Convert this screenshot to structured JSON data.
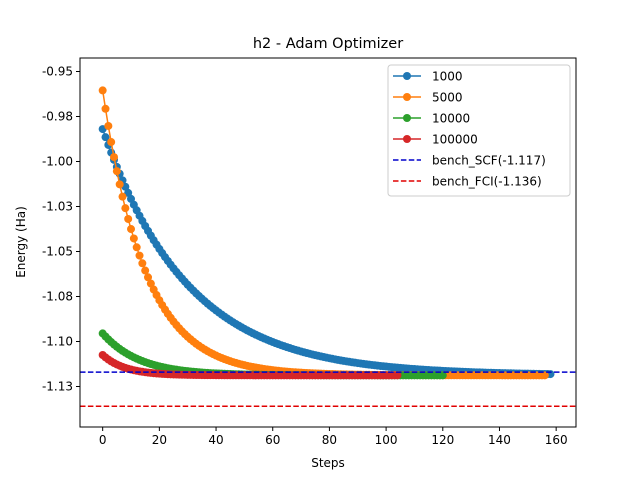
{
  "chart_data": {
    "type": "line",
    "title": "h2 - Adam Optimizer",
    "xlabel": "Steps",
    "ylabel": "Energy (Ha)",
    "xlim": [
      -8,
      167
    ],
    "ylim": [
      -1.1475,
      -0.9425
    ],
    "xticks": [
      0,
      20,
      40,
      60,
      80,
      100,
      120,
      140,
      160
    ],
    "yticks": [
      -0.95,
      -0.975,
      -1.0,
      -1.025,
      -1.05,
      -1.075,
      -1.1,
      -1.125
    ],
    "yticklabels": [
      "-0.95",
      "-0.98",
      "-1.00",
      "-1.03",
      "-1.05",
      "-1.08",
      "-1.10",
      "-1.13"
    ],
    "grid": false,
    "legend_position": "top-right",
    "series": [
      {
        "name": "1000",
        "color": "#1f77b4",
        "marker": "circle",
        "steps": 159,
        "start": -0.982,
        "end": -1.1188,
        "decay": 30.0
      },
      {
        "name": "5000",
        "color": "#ff7f0e",
        "marker": "circle",
        "steps": 157,
        "start": -0.9605,
        "end": -1.1188,
        "decay": 15.0
      },
      {
        "name": "10000",
        "color": "#2ca02c",
        "marker": "circle",
        "steps": 121,
        "start": -1.0955,
        "end": -1.1188,
        "decay": 13.0
      },
      {
        "name": "100000",
        "color": "#d62728",
        "marker": "circle",
        "steps": 105,
        "start": -1.1075,
        "end": -1.1188,
        "decay": 8.0
      }
    ],
    "reference_lines": [
      {
        "name": "bench_SCF(-1.117)",
        "value": -1.117,
        "color": "#0000cc",
        "style": "dashed"
      },
      {
        "name": "bench_FCI(-1.136)",
        "value": -1.136,
        "color": "#e00000",
        "style": "dashed"
      }
    ]
  }
}
